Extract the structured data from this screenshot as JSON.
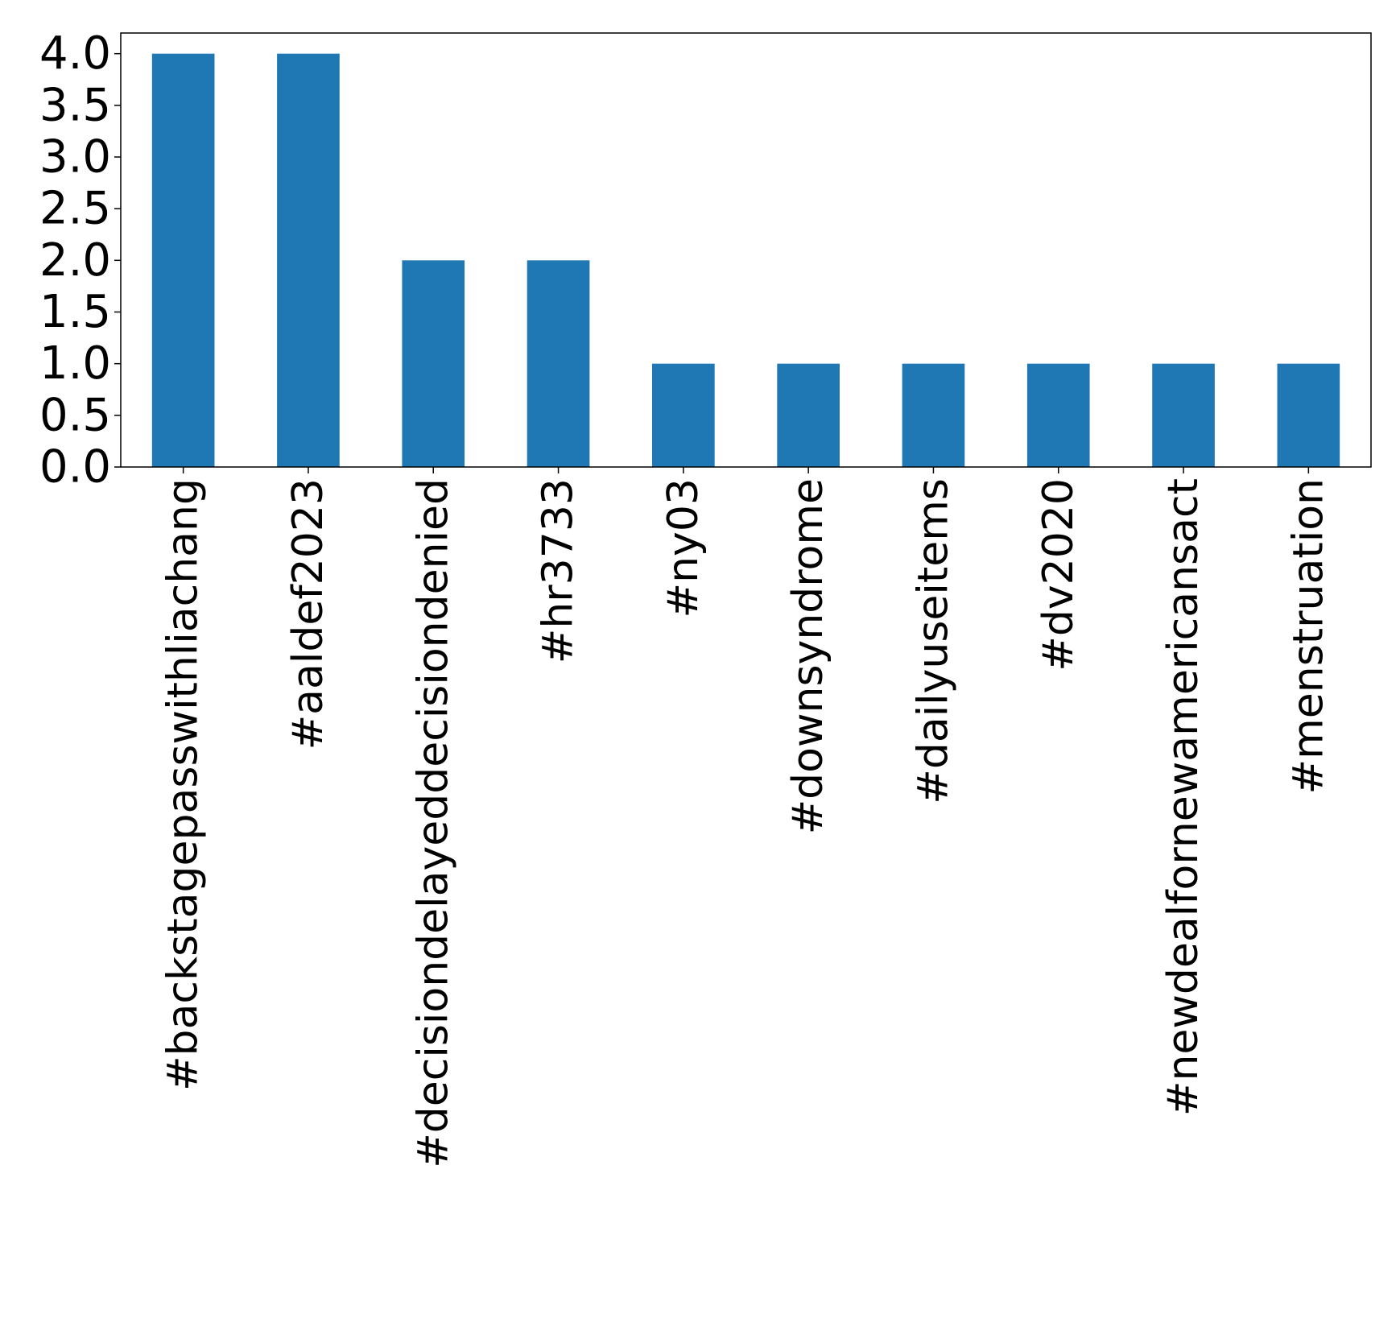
{
  "chart_data": {
    "type": "bar",
    "title": "",
    "xlabel": "",
    "ylabel": "",
    "categories": [
      "#backstagepasswithliachang",
      "#aaldef2023",
      "#decisiondelayeddecisiondenied",
      "#hr3733",
      "#ny03",
      "#downsyndrome",
      "#dailyuseitems",
      "#dv2020",
      "#newdealfornewamericansact",
      "#menstruation"
    ],
    "values": [
      4,
      4,
      2,
      2,
      1,
      1,
      1,
      1,
      1,
      1
    ],
    "ylim": [
      0,
      4.2
    ],
    "yticks": [
      "0.0",
      "0.5",
      "1.0",
      "1.5",
      "2.0",
      "2.5",
      "3.0",
      "3.5",
      "4.0"
    ],
    "grid": false,
    "legend": "none",
    "bar_color": "#1f77b4"
  }
}
